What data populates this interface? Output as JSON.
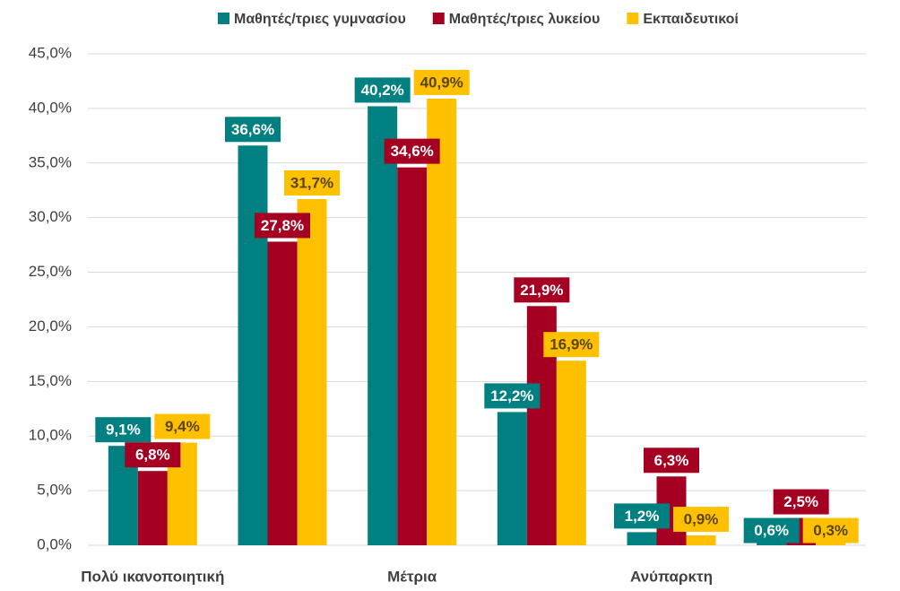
{
  "chart_data": {
    "type": "bar",
    "categories": [
      "Πολύ ικανοποιητική",
      null,
      "Μέτρια",
      null,
      "Ανύπαρκτη",
      null
    ],
    "series": [
      {
        "name": "Μαθητές/τριες γυμνασίου",
        "color": "#008080",
        "label_text_color": "#ffffff",
        "values": [
          9.1,
          36.6,
          40.2,
          12.2,
          1.2,
          0.6
        ],
        "value_labels": [
          "9,1%",
          "36,6%",
          "40,2%",
          "12,2%",
          "1,2%",
          "0,6%"
        ]
      },
      {
        "name": "Μαθητές/τριες λυκείου",
        "color": "#a50021",
        "label_text_color": "#ffffff",
        "values": [
          6.8,
          27.8,
          34.6,
          21.9,
          6.3,
          2.5
        ],
        "value_labels": [
          "6,8%",
          "27,8%",
          "34,6%",
          "21,9%",
          "6,3%",
          "2,5%"
        ]
      },
      {
        "name": "Εκπαιδευτικοί",
        "color": "#ffc000",
        "label_text_color": "#5a4500",
        "values": [
          9.4,
          31.7,
          40.9,
          16.9,
          0.9,
          0.3
        ],
        "value_labels": [
          "9,4%",
          "31,7%",
          "40,9%",
          "16,9%",
          "0,9%",
          "0,3%"
        ]
      }
    ],
    "ylim": [
      0,
      45
    ],
    "yticks": [
      {
        "value": 0,
        "label": "0,0%"
      },
      {
        "value": 5,
        "label": "5,0%"
      },
      {
        "value": 10,
        "label": "10,0%"
      },
      {
        "value": 15,
        "label": "15,0%"
      },
      {
        "value": 20,
        "label": "20,0%"
      },
      {
        "value": 25,
        "label": "25,0%"
      },
      {
        "value": 30,
        "label": "30,0%"
      },
      {
        "value": 35,
        "label": "35,0%"
      },
      {
        "value": 40,
        "label": "40,0%"
      },
      {
        "value": 45,
        "label": "45,0%"
      }
    ],
    "grid": true,
    "legend": "top"
  }
}
